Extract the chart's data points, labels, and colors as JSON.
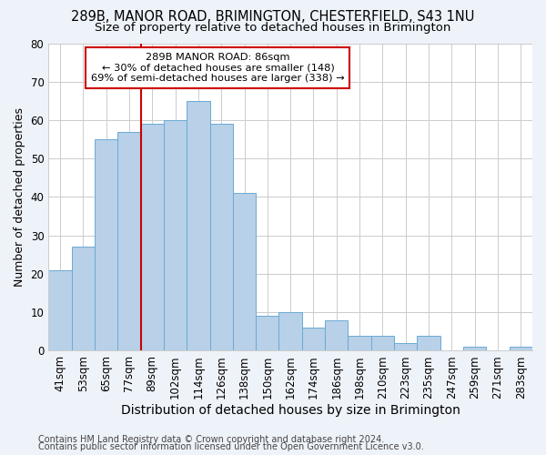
{
  "title1": "289B, MANOR ROAD, BRIMINGTON, CHESTERFIELD, S43 1NU",
  "title2": "Size of property relative to detached houses in Brimington",
  "xlabel": "Distribution of detached houses by size in Brimington",
  "ylabel": "Number of detached properties",
  "footer1": "Contains HM Land Registry data © Crown copyright and database right 2024.",
  "footer2": "Contains public sector information licensed under the Open Government Licence v3.0.",
  "categories": [
    "41sqm",
    "53sqm",
    "65sqm",
    "77sqm",
    "89sqm",
    "102sqm",
    "114sqm",
    "126sqm",
    "138sqm",
    "150sqm",
    "162sqm",
    "174sqm",
    "186sqm",
    "198sqm",
    "210sqm",
    "223sqm",
    "235sqm",
    "247sqm",
    "259sqm",
    "271sqm",
    "283sqm"
  ],
  "values": [
    21,
    27,
    55,
    57,
    59,
    60,
    65,
    59,
    41,
    9,
    10,
    6,
    8,
    4,
    4,
    2,
    4,
    0,
    1,
    0,
    1
  ],
  "bar_color": "#b8d0e8",
  "bar_edge_color": "#6aaad4",
  "annotation_line1": "289B MANOR ROAD: 86sqm",
  "annotation_line2": "← 30% of detached houses are smaller (148)",
  "annotation_line3": "69% of semi-detached houses are larger (338) →",
  "annotation_box_color": "#ffffff",
  "annotation_box_edge": "#cc0000",
  "ylim": [
    0,
    80
  ],
  "yticks": [
    0,
    10,
    20,
    30,
    40,
    50,
    60,
    70,
    80
  ],
  "grid_color": "#cccccc",
  "bg_color": "#eef2f9",
  "plot_bg_color": "#ffffff",
  "vline_color": "#cc0000",
  "title_fontsize": 10.5,
  "subtitle_fontsize": 9.5,
  "xlabel_fontsize": 10,
  "ylabel_fontsize": 9,
  "tick_fontsize": 8.5,
  "footer_fontsize": 7
}
